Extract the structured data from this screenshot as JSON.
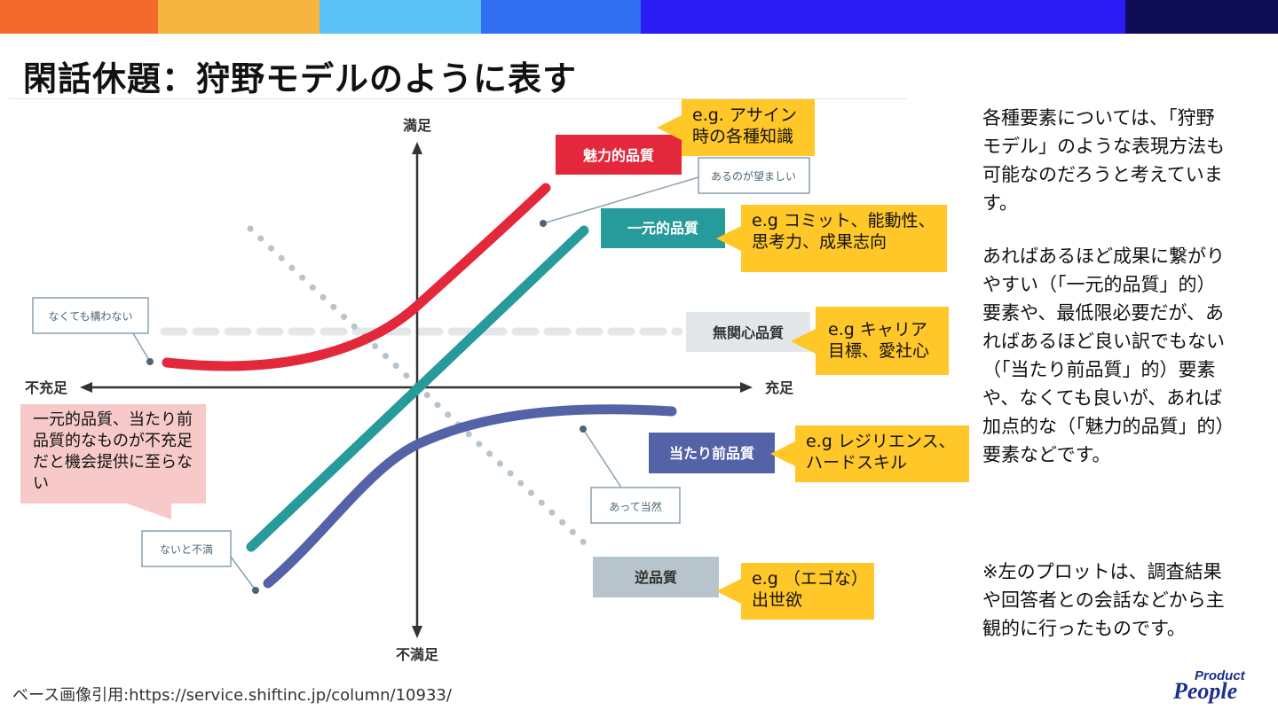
{
  "header": {
    "color_bar": [
      "#f26a2e",
      "#f6b440",
      "#5bc2f5",
      "#2f6ff0",
      "#2a1cf2",
      "#0d0c55"
    ],
    "title": "閑話休題：狩野モデルのように表す"
  },
  "diagram": {
    "axes": {
      "top": "満足",
      "bottom": "不満足",
      "left": "不充足",
      "right": "充足"
    },
    "quality_labels": {
      "attractive": "魅力的品質",
      "one_dimensional": "一元的品質",
      "indifferent": "無関心品質",
      "must_be": "当たり前品質",
      "reverse": "逆品質"
    },
    "annotations": {
      "desirable": "あるのが望ましい",
      "dont_mind": "なくても構わない",
      "dissatisfied_without": "ないと不満",
      "taken_for_granted": "あって当然"
    },
    "colors": {
      "attractive": "#e2283a",
      "one_dimensional": "#279a9c",
      "must_be": "#5462a8",
      "indifferent": "#e3e7ea",
      "reverse": "#b7c4cb",
      "axis": "#333333",
      "callout": "#ffc727",
      "note": "#f7c9c9"
    }
  },
  "callouts": {
    "attractive": "e.g. アサイン時の各種知識",
    "one_dimensional": "e.g コミット、能動性、思考力、成果志向",
    "indifferent": "e.g キャリア目標、愛社心",
    "must_be": "e.g レジリエンス、ハードスキル",
    "reverse": "e.g （エゴな）出世欲"
  },
  "side_note": "一元的品質、当たり前品質的なものが不充足だと機会提供に至らない",
  "right_panel": {
    "p1": "各種要素については、「狩野モデル」のような表現方法も可能なのだろうと考えています。",
    "p2": "あればあるほど成果に繋がりやすい（「一元的品質」的）要素や、最低限必要だが、あればあるほど良い訳でもない（「当たり前品質」的）要素や、なくても良いが、あれば加点的な（「魅力的品質」的）要素などです。",
    "p3": "※左のプロットは、調査結果や回答者との会話などから主観的に行ったものです。"
  },
  "source": "ベース画像引用:https://service.shiftinc.jp/column/10933/",
  "logo": {
    "line1": "Product",
    "line2": "People"
  }
}
